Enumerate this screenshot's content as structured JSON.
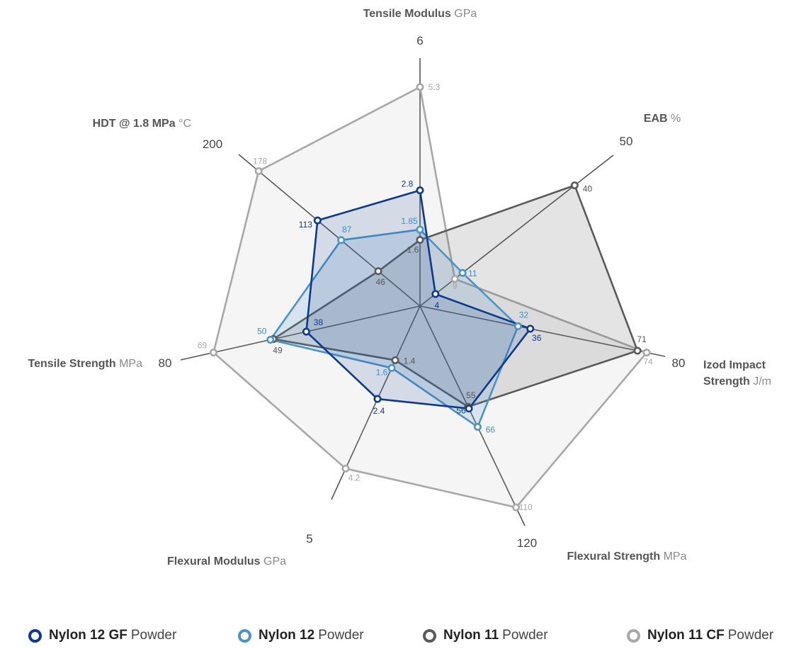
{
  "chart_data": {
    "type": "radar",
    "axes": [
      {
        "name": "Tensile Modulus",
        "unit": "GPa",
        "max": 6,
        "max_label": "6"
      },
      {
        "name": "EAB",
        "unit": "%",
        "max": 50,
        "max_label": "50"
      },
      {
        "name": "Izod Impact",
        "name_line2": "Strength",
        "unit": "J/m",
        "max": 80,
        "max_label": "80"
      },
      {
        "name": "Flexural Strength",
        "unit": "MPa",
        "max": 120,
        "max_label": "120"
      },
      {
        "name": "Flexural Modulus",
        "unit": "GPa",
        "max": 5,
        "max_label": "5"
      },
      {
        "name": "Tensile Strength",
        "unit": "MPa",
        "max": 80,
        "max_label": "80"
      },
      {
        "name": "HDT @ 1.8 MPa",
        "unit": "°C",
        "max": 200,
        "max_label": "200"
      }
    ],
    "series": [
      {
        "name": "Nylon 11 CF",
        "suffix": "Powder",
        "color": "#a8a8a8",
        "values": [
          5.3,
          9,
          74,
          110,
          4.2,
          69,
          178
        ],
        "labels": [
          "5.3",
          "9",
          "74",
          "110",
          "4.2",
          "69",
          "178"
        ]
      },
      {
        "name": "Nylon 11",
        "suffix": "Powder",
        "color": "#5a5a5a",
        "values": [
          1.6,
          40,
          71,
          55,
          1.4,
          49,
          46
        ],
        "labels": [
          "1.6",
          "40",
          "71",
          "55",
          "1.4",
          "49",
          "46"
        ]
      },
      {
        "name": "Nylon 12",
        "suffix": "Powder",
        "color": "#4a94c8",
        "values": [
          1.85,
          11,
          32,
          66,
          1.6,
          50,
          87
        ],
        "labels": [
          "1.85",
          "11",
          "32",
          "66",
          "1.6",
          "50",
          "87"
        ]
      },
      {
        "name": "Nylon 12 GF",
        "suffix": "Powder",
        "color": "#0d3a8c",
        "values": [
          2.8,
          4,
          36,
          56,
          2.4,
          38,
          113
        ],
        "labels": [
          "2.8",
          "4",
          "36",
          "56",
          "2.4",
          "38",
          "113"
        ]
      }
    ],
    "legend": [
      {
        "name": "Nylon 12 GF",
        "suffix": "Powder",
        "color": "#0d3a8c"
      },
      {
        "name": "Nylon 12",
        "suffix": "Powder",
        "color": "#4a94c8"
      },
      {
        "name": "Nylon 11",
        "suffix": "Powder",
        "color": "#5a5a5a"
      },
      {
        "name": "Nylon 11 CF",
        "suffix": "Powder",
        "color": "#a8a8a8"
      }
    ],
    "legend_position": "bottom"
  }
}
